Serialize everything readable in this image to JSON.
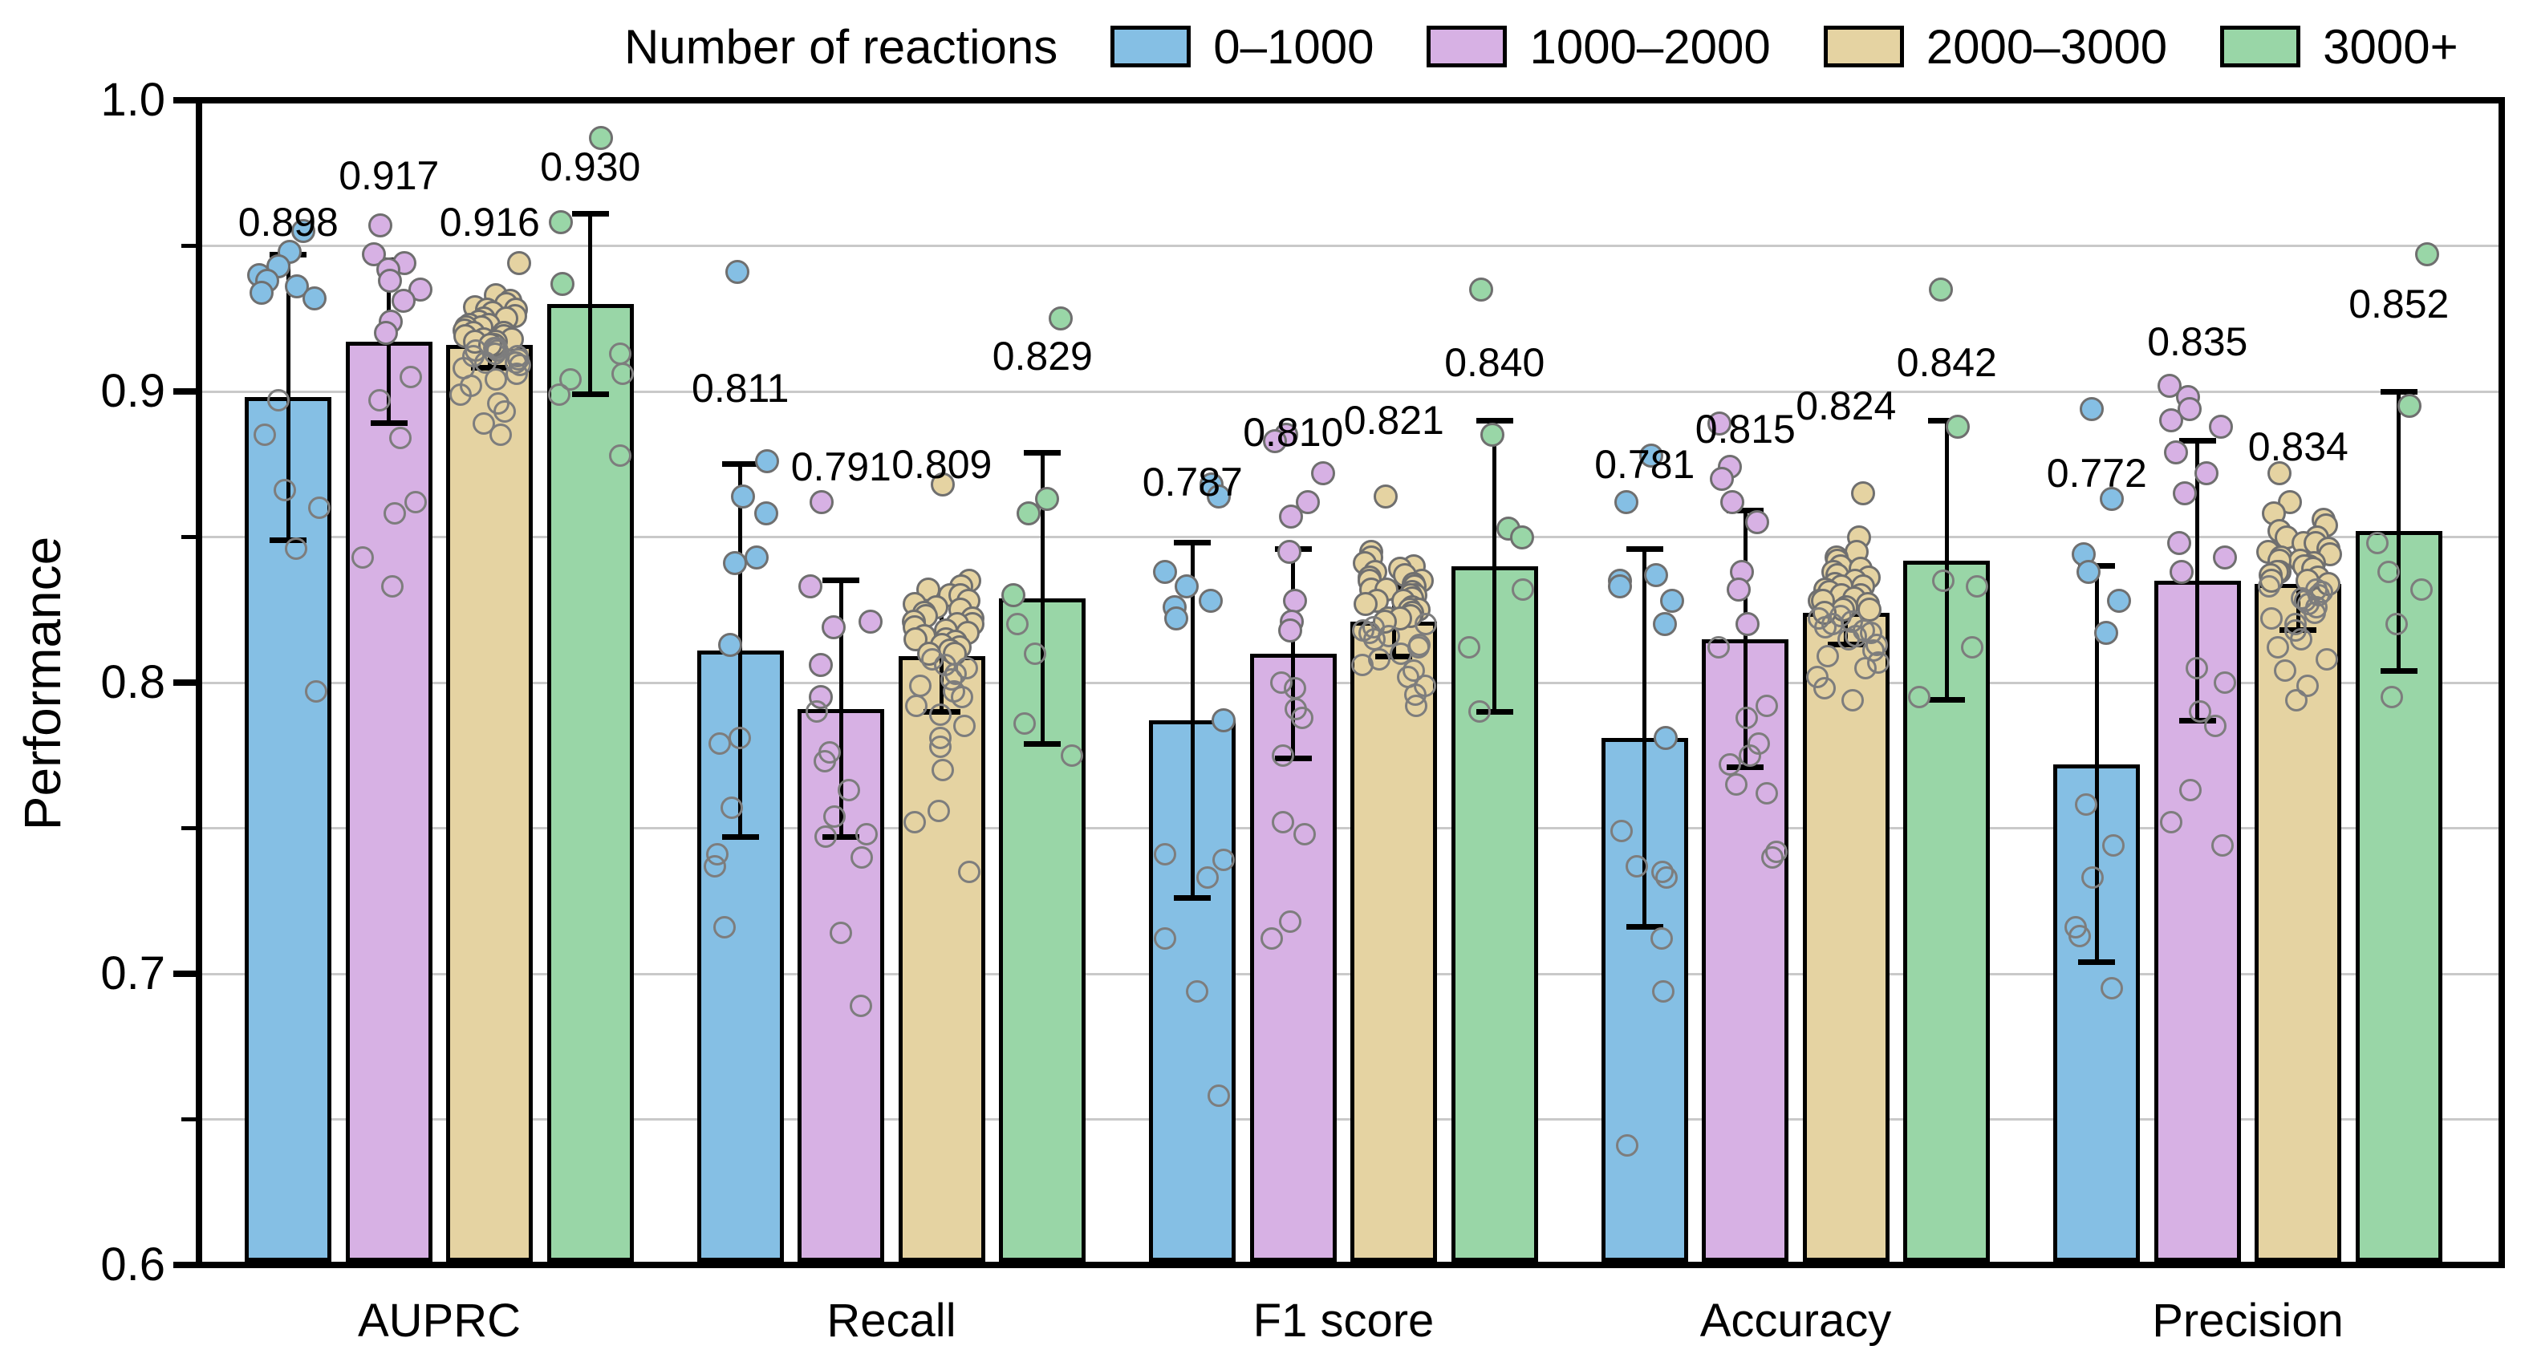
{
  "legend": {
    "title": "Number of reactions",
    "items": [
      {
        "label": "0–1000",
        "color": "#85bfe4"
      },
      {
        "label": "1000–2000",
        "color": "#d7b1e4"
      },
      {
        "label": "2000–3000",
        "color": "#e5d3a2"
      },
      {
        "label": "3000+",
        "color": "#99d6a7"
      }
    ]
  },
  "axes": {
    "y_label": "Performance",
    "y_major_ticks": [
      1.0,
      0.9,
      0.8,
      0.7,
      0.6
    ],
    "y_major_tick_labels": [
      "1.0",
      "0.9",
      "0.8",
      "0.7",
      "0.6"
    ],
    "y_minor_ticks": [
      0.95,
      0.85,
      0.75,
      0.65
    ],
    "gridline_step": 0.05,
    "grid_color": "#c9c9c9"
  },
  "chart_data": {
    "type": "bar",
    "title": "",
    "xlabel": "",
    "ylabel": "Performance",
    "ylim": [
      0.6,
      1.0
    ],
    "grid": "horizontal, every 0.05",
    "legend_position": "top",
    "categories": [
      "AUPRC",
      "Recall",
      "F1 score",
      "Accuracy",
      "Precision"
    ],
    "series": [
      {
        "name": "0–1000",
        "color": "#85bfe4",
        "means": [
          0.898,
          0.811,
          0.787,
          0.781,
          0.772
        ],
        "value_labels": [
          "0.898",
          "0.811",
          "0.787",
          "0.781",
          "0.772"
        ],
        "sd": [
          0.049,
          0.064,
          0.061,
          0.065,
          0.068
        ],
        "label_y": [
          0.958,
          0.901,
          0.869,
          0.875,
          0.872
        ],
        "points": [
          [
            0.955,
            0.948,
            0.943,
            0.94,
            0.938,
            0.936,
            0.934,
            0.932,
            0.897,
            0.885,
            0.866,
            0.86,
            0.846,
            0.797
          ],
          [
            0.941,
            0.876,
            0.864,
            0.858,
            0.843,
            0.841,
            0.813,
            0.781,
            0.779,
            0.757,
            0.741,
            0.737,
            0.716
          ],
          [
            0.868,
            0.864,
            0.838,
            0.833,
            0.828,
            0.826,
            0.822,
            0.787,
            0.741,
            0.739,
            0.733,
            0.712,
            0.694,
            0.658
          ],
          [
            0.878,
            0.862,
            0.837,
            0.835,
            0.833,
            0.828,
            0.82,
            0.781,
            0.749,
            0.737,
            0.735,
            0.733,
            0.712,
            0.694,
            0.641
          ],
          [
            0.894,
            0.863,
            0.844,
            0.838,
            0.828,
            0.817,
            0.758,
            0.744,
            0.733,
            0.716,
            0.713,
            0.695
          ]
        ]
      },
      {
        "name": "1000–2000",
        "color": "#d7b1e4",
        "means": [
          0.917,
          0.791,
          0.81,
          0.815,
          0.835
        ],
        "value_labels": [
          "0.917",
          "0.791",
          "0.810",
          "0.815",
          "0.835"
        ],
        "sd": [
          0.028,
          0.044,
          0.036,
          0.044,
          0.048
        ],
        "label_y": [
          0.974,
          0.874,
          0.886,
          0.887,
          0.917
        ],
        "points": [
          [
            0.957,
            0.947,
            0.944,
            0.942,
            0.938,
            0.935,
            0.931,
            0.924,
            0.92,
            0.905,
            0.897,
            0.884,
            0.862,
            0.858,
            0.843,
            0.833
          ],
          [
            0.862,
            0.833,
            0.821,
            0.819,
            0.806,
            0.795,
            0.79,
            0.776,
            0.773,
            0.763,
            0.754,
            0.748,
            0.747,
            0.74,
            0.714,
            0.689
          ],
          [
            0.885,
            0.883,
            0.872,
            0.862,
            0.857,
            0.845,
            0.828,
            0.821,
            0.818,
            0.8,
            0.798,
            0.791,
            0.788,
            0.775,
            0.752,
            0.748,
            0.718,
            0.712
          ],
          [
            0.889,
            0.874,
            0.87,
            0.862,
            0.855,
            0.838,
            0.832,
            0.82,
            0.812,
            0.792,
            0.788,
            0.779,
            0.775,
            0.772,
            0.765,
            0.762,
            0.742,
            0.74
          ],
          [
            0.902,
            0.898,
            0.894,
            0.89,
            0.888,
            0.879,
            0.872,
            0.865,
            0.848,
            0.843,
            0.838,
            0.805,
            0.8,
            0.79,
            0.785,
            0.763,
            0.752,
            0.744
          ]
        ]
      },
      {
        "name": "2000–3000",
        "color": "#e5d3a2",
        "means": [
          0.916,
          0.809,
          0.821,
          0.824,
          0.834
        ],
        "value_labels": [
          "0.916",
          "0.809",
          "0.821",
          "0.824",
          "0.834"
        ],
        "sd": [
          0.008,
          0.019,
          0.012,
          0.011,
          0.016
        ],
        "label_y": [
          0.958,
          0.875,
          0.89,
          0.895,
          0.881
        ],
        "points": [
          [
            0.944,
            0.933,
            0.931,
            0.93,
            0.929,
            0.928,
            0.928,
            0.927,
            0.926,
            0.925,
            0.925,
            0.924,
            0.923,
            0.923,
            0.922,
            0.922,
            0.921,
            0.92,
            0.92,
            0.92,
            0.919,
            0.919,
            0.918,
            0.918,
            0.917,
            0.917,
            0.916,
            0.916,
            0.915,
            0.915,
            0.914,
            0.914,
            0.913,
            0.912,
            0.912,
            0.911,
            0.91,
            0.91,
            0.909,
            0.908,
            0.906,
            0.904,
            0.902,
            0.899,
            0.896,
            0.893,
            0.889,
            0.885
          ],
          [
            0.868,
            0.835,
            0.833,
            0.832,
            0.83,
            0.83,
            0.828,
            0.827,
            0.826,
            0.825,
            0.824,
            0.823,
            0.822,
            0.821,
            0.82,
            0.82,
            0.819,
            0.818,
            0.817,
            0.816,
            0.815,
            0.815,
            0.814,
            0.813,
            0.812,
            0.811,
            0.81,
            0.81,
            0.808,
            0.806,
            0.805,
            0.803,
            0.801,
            0.799,
            0.797,
            0.795,
            0.792,
            0.789,
            0.785,
            0.781,
            0.778,
            0.77,
            0.756,
            0.752,
            0.735
          ],
          [
            0.864,
            0.845,
            0.843,
            0.841,
            0.84,
            0.839,
            0.838,
            0.837,
            0.836,
            0.835,
            0.835,
            0.834,
            0.833,
            0.832,
            0.832,
            0.831,
            0.83,
            0.83,
            0.829,
            0.828,
            0.828,
            0.827,
            0.826,
            0.825,
            0.825,
            0.824,
            0.823,
            0.822,
            0.822,
            0.821,
            0.82,
            0.819,
            0.818,
            0.817,
            0.816,
            0.815,
            0.813,
            0.812,
            0.81,
            0.808,
            0.806,
            0.804,
            0.802,
            0.799,
            0.796,
            0.792
          ],
          [
            0.865,
            0.85,
            0.845,
            0.843,
            0.842,
            0.84,
            0.839,
            0.838,
            0.837,
            0.836,
            0.835,
            0.834,
            0.833,
            0.833,
            0.832,
            0.831,
            0.83,
            0.83,
            0.829,
            0.828,
            0.828,
            0.827,
            0.826,
            0.825,
            0.825,
            0.824,
            0.823,
            0.822,
            0.821,
            0.82,
            0.819,
            0.818,
            0.817,
            0.816,
            0.815,
            0.813,
            0.811,
            0.809,
            0.807,
            0.805,
            0.802,
            0.798,
            0.794
          ],
          [
            0.872,
            0.862,
            0.858,
            0.856,
            0.854,
            0.852,
            0.85,
            0.85,
            0.848,
            0.848,
            0.846,
            0.845,
            0.844,
            0.843,
            0.842,
            0.842,
            0.841,
            0.84,
            0.84,
            0.839,
            0.838,
            0.838,
            0.837,
            0.836,
            0.835,
            0.835,
            0.834,
            0.833,
            0.832,
            0.831,
            0.83,
            0.829,
            0.828,
            0.827,
            0.826,
            0.824,
            0.822,
            0.82,
            0.818,
            0.815,
            0.812,
            0.808,
            0.804,
            0.799,
            0.794
          ]
        ]
      },
      {
        "name": "3000+",
        "color": "#99d6a7",
        "means": [
          0.93,
          0.829,
          0.84,
          0.842,
          0.852
        ],
        "value_labels": [
          "0.930",
          "0.829",
          "0.840",
          "0.842",
          "0.852"
        ],
        "sd": [
          0.031,
          0.05,
          0.05,
          0.048,
          0.048
        ],
        "label_y": [
          0.977,
          0.912,
          0.91,
          0.91,
          0.93
        ],
        "points": [
          [
            0.987,
            0.958,
            0.937,
            0.913,
            0.906,
            0.904,
            0.899,
            0.878
          ],
          [
            0.925,
            0.863,
            0.858,
            0.83,
            0.82,
            0.81,
            0.786,
            0.775
          ],
          [
            0.935,
            0.885,
            0.853,
            0.85,
            0.832,
            0.812,
            0.79
          ],
          [
            0.935,
            0.888,
            0.835,
            0.833,
            0.812,
            0.795
          ],
          [
            0.947,
            0.895,
            0.848,
            0.838,
            0.832,
            0.82,
            0.795
          ]
        ]
      }
    ]
  }
}
